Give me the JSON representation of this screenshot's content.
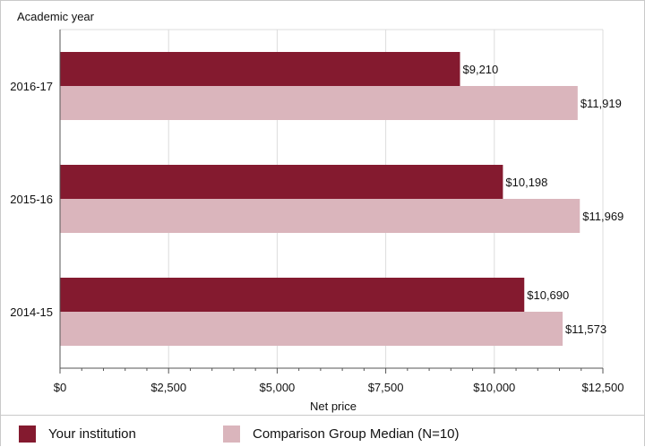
{
  "colors": {
    "institution": "#841a2f",
    "comparison": "#dab5bc",
    "grid": "#dcdcdc",
    "axis": "#555555"
  },
  "chart_data": {
    "type": "bar",
    "orientation": "horizontal",
    "categories": [
      "2016-17",
      "2015-16",
      "2014-15"
    ],
    "series": [
      {
        "name": "Your institution",
        "values": [
          9210,
          10198,
          10690
        ],
        "labels": [
          "$9,210",
          "$10,198",
          "$10,690"
        ]
      },
      {
        "name": "Comparison Group Median (N=10)",
        "values": [
          11919,
          11969,
          11573
        ],
        "labels": [
          "$11,919",
          "$11,969",
          "$11,573"
        ]
      }
    ],
    "xlabel": "Net price",
    "ylabel": "Academic year",
    "xlim": [
      0,
      12500
    ],
    "x_ticks": [
      0,
      2500,
      5000,
      7500,
      10000,
      12500
    ],
    "x_tick_labels": [
      "$0",
      "$2,500",
      "$5,000",
      "$7,500",
      "$10,000",
      "$12,500"
    ],
    "grid": true,
    "legend_position": "bottom"
  },
  "legend": {
    "items": [
      "Your institution",
      "Comparison Group Median (N=10)"
    ]
  }
}
